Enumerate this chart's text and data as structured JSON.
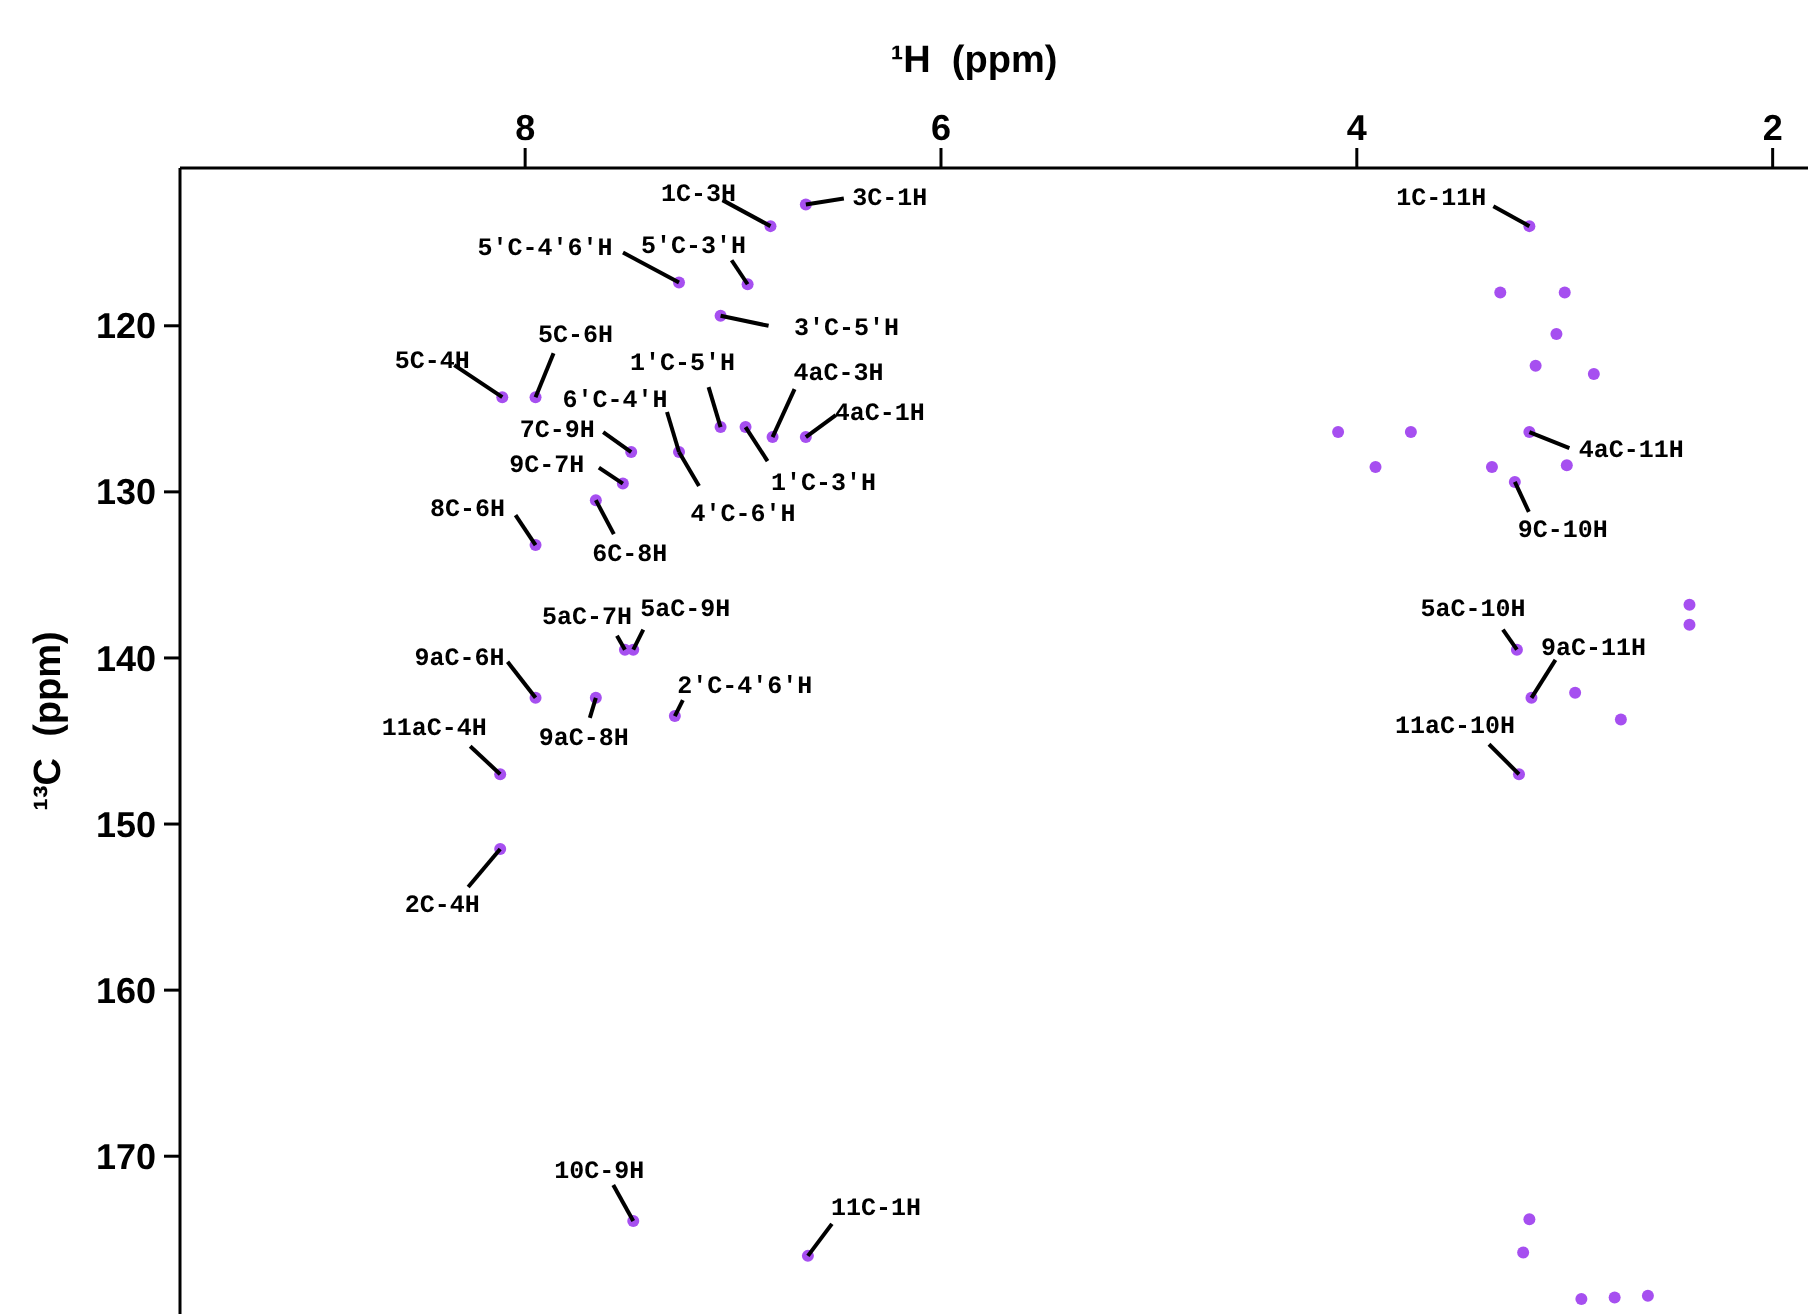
{
  "chart_data": {
    "type": "scatter",
    "xlabel": "¹H  (ppm)",
    "ylabel": "¹³C  (ppm)",
    "xlim": [
      9.66,
      1.83
    ],
    "xticks": [
      8,
      6,
      4,
      2
    ],
    "ylim": [
      179.5,
      110.5
    ],
    "yticks": [
      120,
      130,
      140,
      150,
      160,
      170
    ],
    "marker": "circle",
    "series": [
      {
        "color": "#a64ff0",
        "x": [
          6.82,
          6.65,
          7.26,
          6.93,
          7.06,
          8.11,
          7.95,
          7.06,
          6.94,
          6.81,
          6.65,
          7.26,
          7.49,
          7.53,
          7.66,
          7.95,
          7.52,
          7.48,
          7.95,
          7.66,
          7.28,
          8.12,
          8.12,
          7.48,
          6.64,
          3.17,
          3.17,
          3.24,
          3.23,
          3.16,
          3.22,
          4.09,
          3.74,
          3.91,
          3.35,
          2.99,
          3.31,
          3.0,
          3.04,
          3.14,
          2.86,
          2.95,
          2.73,
          2.4,
          2.4,
          3.17,
          3.2,
          2.92,
          2.76,
          2.6
        ],
        "values": [
          114.0,
          112.7,
          117.4,
          117.5,
          119.4,
          124.3,
          124.3,
          126.1,
          126.1,
          126.7,
          126.7,
          127.6,
          127.6,
          129.5,
          130.5,
          133.2,
          139.5,
          139.5,
          142.4,
          142.4,
          143.5,
          147.0,
          151.5,
          173.9,
          176.0,
          114.0,
          126.4,
          129.4,
          139.5,
          142.4,
          147.0,
          126.4,
          126.4,
          128.5,
          128.5,
          128.4,
          118.0,
          118.0,
          120.5,
          122.4,
          122.9,
          142.1,
          143.7,
          136.8,
          138.0,
          173.8,
          175.8,
          178.6,
          178.5,
          178.4
        ]
      }
    ],
    "annotations": [
      {
        "text": "1C-3H",
        "x": 6.82,
        "y": 114.0
      },
      {
        "text": "3C-1H",
        "x": 6.65,
        "y": 112.7
      },
      {
        "text": "5'C-4'6'H",
        "x": 7.26,
        "y": 117.4
      },
      {
        "text": "5'C-3'H",
        "x": 6.93,
        "y": 117.5
      },
      {
        "text": "3'C-5'H",
        "x": 7.06,
        "y": 119.4
      },
      {
        "text": "5C-4H",
        "x": 8.11,
        "y": 124.3
      },
      {
        "text": "5C-6H",
        "x": 7.95,
        "y": 124.3
      },
      {
        "text": "1'C-5'H",
        "x": 7.06,
        "y": 126.1
      },
      {
        "text": "1'C-3'H",
        "x": 6.94,
        "y": 126.1
      },
      {
        "text": "4aC-3H",
        "x": 6.81,
        "y": 126.7
      },
      {
        "text": "4aC-1H",
        "x": 6.65,
        "y": 126.7
      },
      {
        "text": "6'C-4'H",
        "x": 7.26,
        "y": 127.6
      },
      {
        "text": "4'C-6'H",
        "x": 7.26,
        "y": 127.6
      },
      {
        "text": "7C-9H",
        "x": 7.49,
        "y": 127.6
      },
      {
        "text": "9C-7H",
        "x": 7.53,
        "y": 129.5
      },
      {
        "text": "6C-8H",
        "x": 7.66,
        "y": 130.5
      },
      {
        "text": "8C-6H",
        "x": 7.95,
        "y": 133.2
      },
      {
        "text": "5aC-7H",
        "x": 7.52,
        "y": 139.5
      },
      {
        "text": "5aC-9H",
        "x": 7.48,
        "y": 139.5
      },
      {
        "text": "9aC-6H",
        "x": 7.95,
        "y": 142.4
      },
      {
        "text": "9aC-8H",
        "x": 7.66,
        "y": 142.4
      },
      {
        "text": "2'C-4'6'H",
        "x": 7.28,
        "y": 143.5
      },
      {
        "text": "11aC-4H",
        "x": 8.12,
        "y": 147.0
      },
      {
        "text": "2C-4H",
        "x": 8.12,
        "y": 151.5
      },
      {
        "text": "10C-9H",
        "x": 7.48,
        "y": 173.9
      },
      {
        "text": "11C-1H",
        "x": 6.64,
        "y": 176.0
      },
      {
        "text": "1C-11H",
        "x": 3.17,
        "y": 114.0
      },
      {
        "text": "4aC-11H",
        "x": 3.17,
        "y": 126.4
      },
      {
        "text": "9C-10H",
        "x": 3.24,
        "y": 129.4
      },
      {
        "text": "5aC-10H",
        "x": 3.23,
        "y": 139.5
      },
      {
        "text": "9aC-11H",
        "x": 3.16,
        "y": 142.4
      },
      {
        "text": "11aC-10H",
        "x": 3.22,
        "y": 147.0
      }
    ]
  }
}
